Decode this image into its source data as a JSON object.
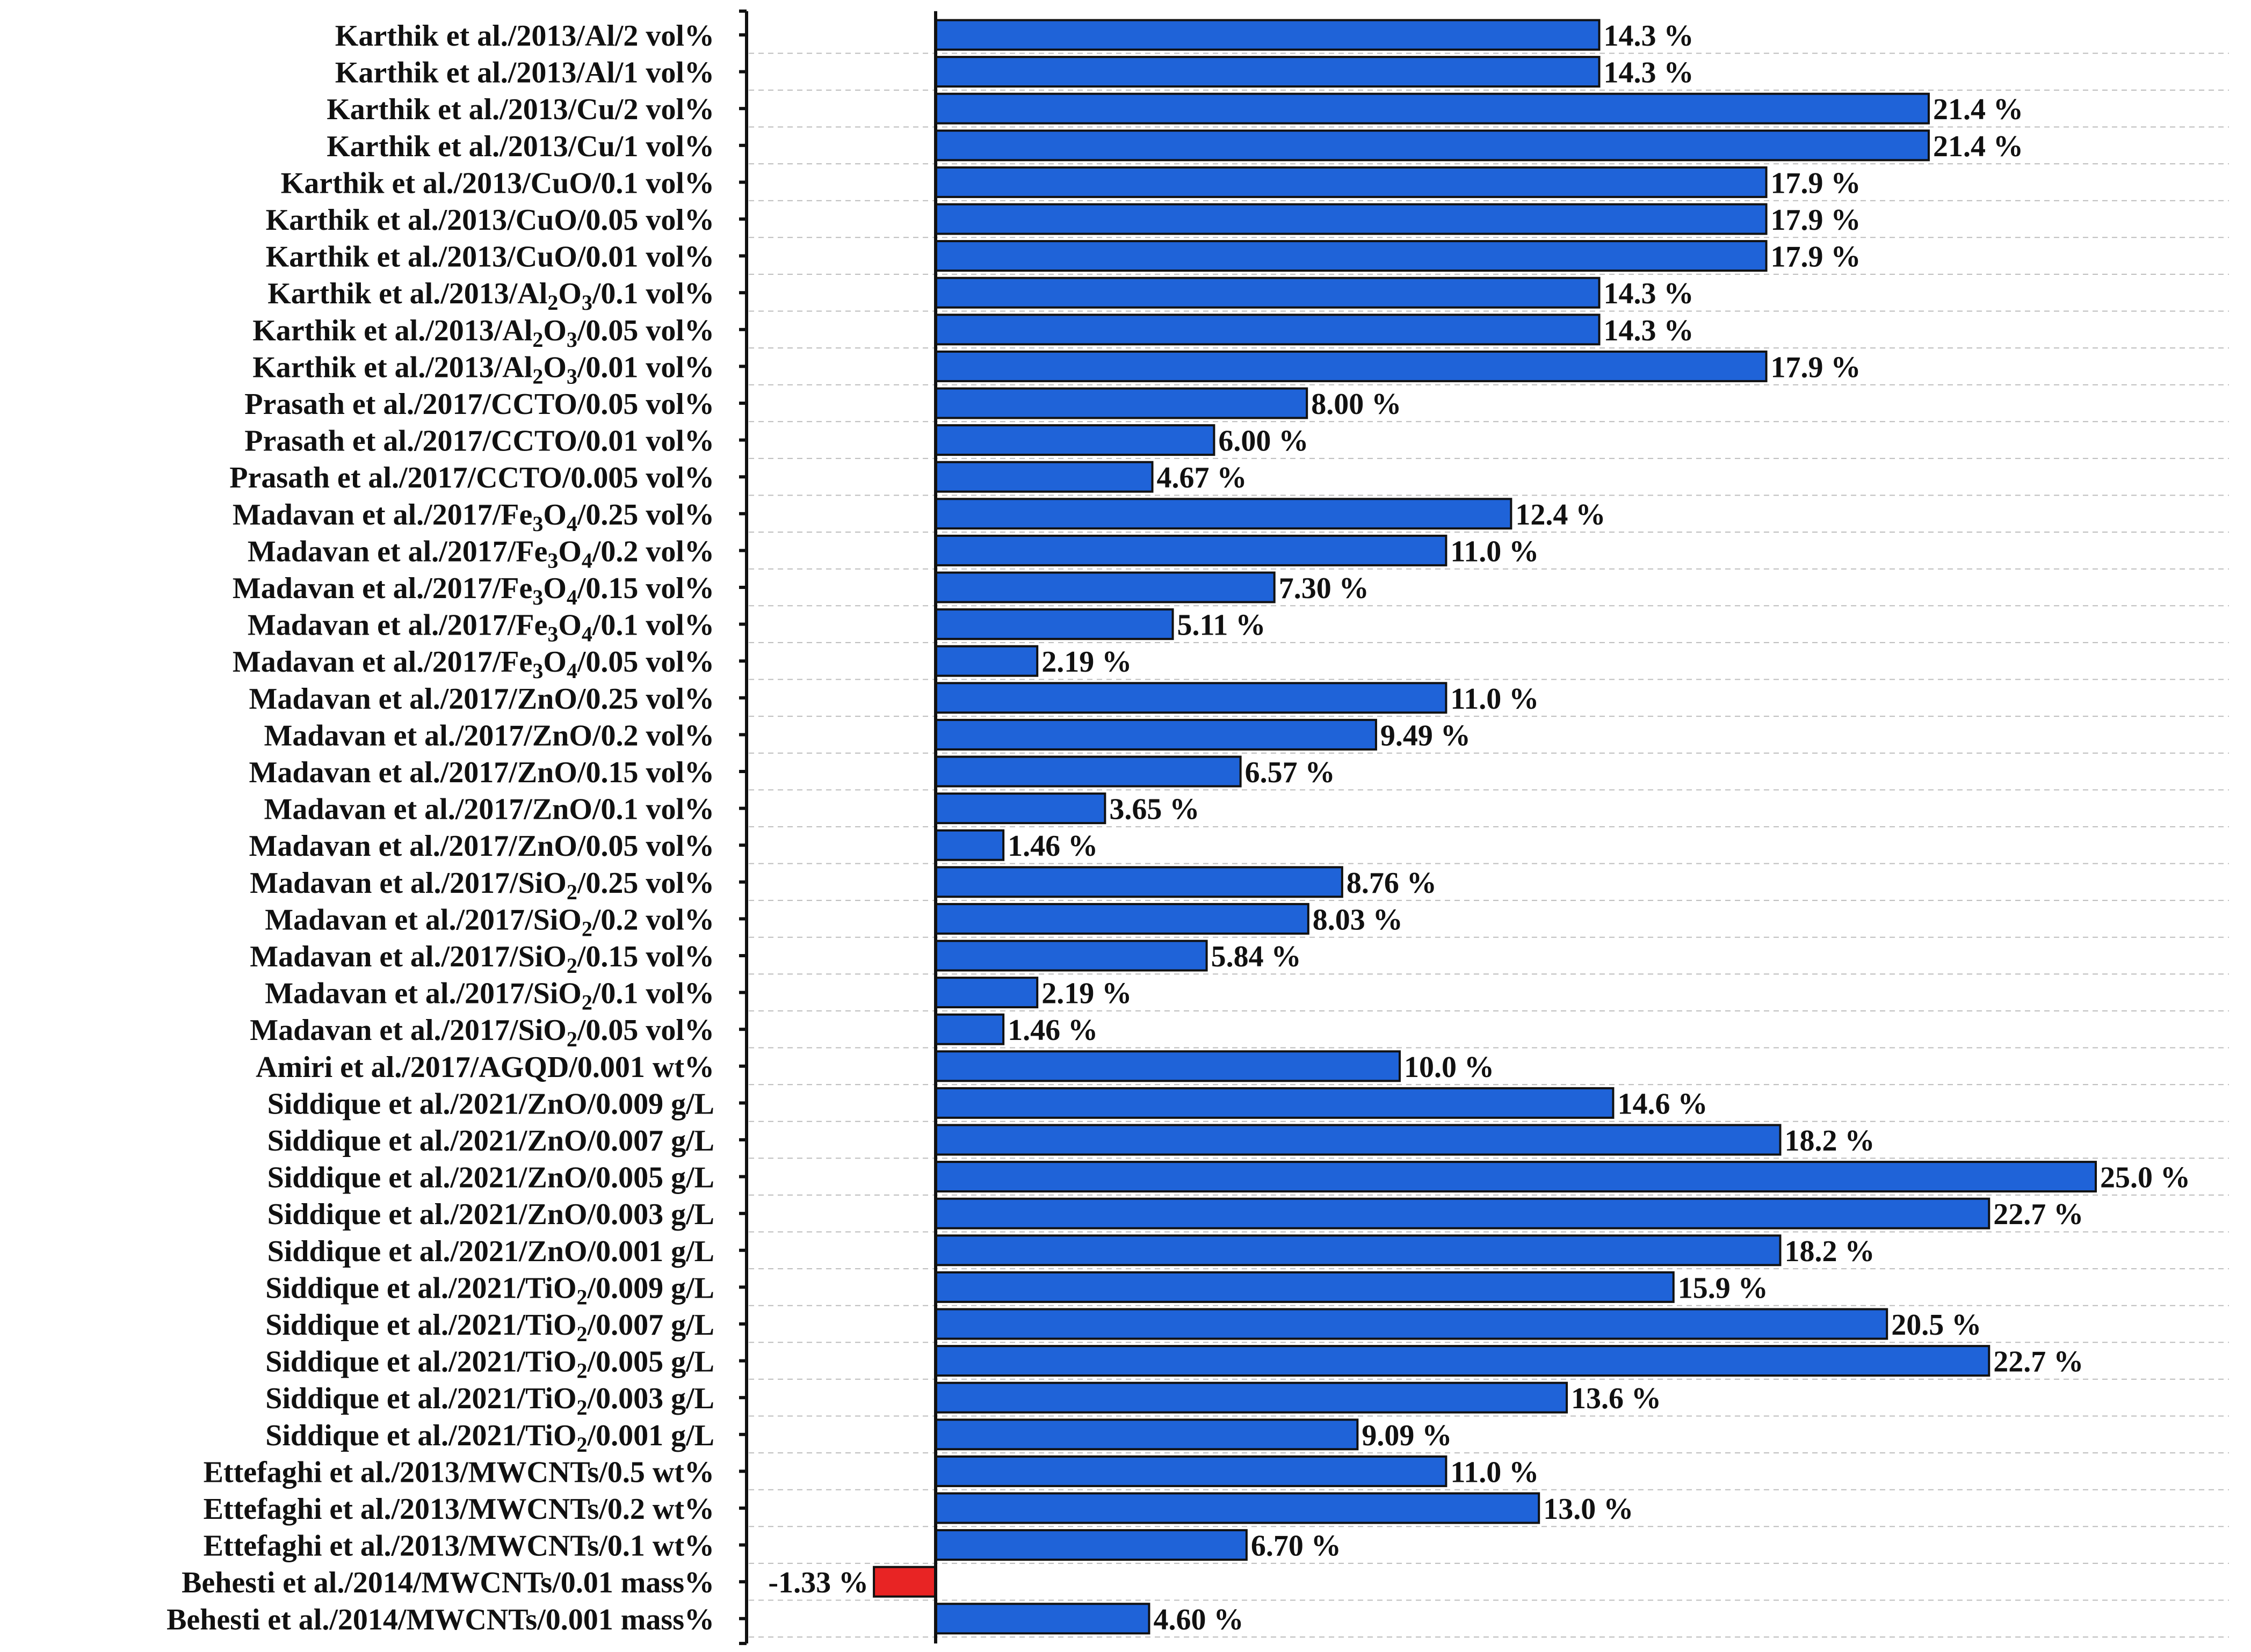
{
  "chart_data": {
    "type": "bar",
    "orientation": "horizontal",
    "title": "",
    "xlabel": "",
    "ylabel": "",
    "grid": "horizontal dashed",
    "legend": "none",
    "colors": {
      "positive": "#1f63d8",
      "negative": "#e82424"
    },
    "xlim": [
      -1.6,
      25.0
    ],
    "categories": [
      {
        "parts": [
          [
            "t",
            "Karthik et al./2013/Al/2 vol%"
          ]
        ]
      },
      {
        "parts": [
          [
            "t",
            "Karthik et al./2013/Al/1 vol%"
          ]
        ]
      },
      {
        "parts": [
          [
            "t",
            "Karthik et al./2013/Cu/2 vol%"
          ]
        ]
      },
      {
        "parts": [
          [
            "t",
            "Karthik et al./2013/Cu/1 vol%"
          ]
        ]
      },
      {
        "parts": [
          [
            "t",
            "Karthik et al./2013/CuO/0.1 vol%"
          ]
        ]
      },
      {
        "parts": [
          [
            "t",
            "Karthik et al./2013/CuO/0.05 vol%"
          ]
        ]
      },
      {
        "parts": [
          [
            "t",
            "Karthik et al./2013/CuO/0.01 vol%"
          ]
        ]
      },
      {
        "parts": [
          [
            "t",
            "Karthik et al./2013/Al"
          ],
          [
            "s",
            "2"
          ],
          [
            "t",
            "O"
          ],
          [
            "s",
            "3"
          ],
          [
            "t",
            "/0.1 vol%"
          ]
        ]
      },
      {
        "parts": [
          [
            "t",
            "Karthik et al./2013/Al"
          ],
          [
            "s",
            "2"
          ],
          [
            "t",
            "O"
          ],
          [
            "s",
            "3"
          ],
          [
            "t",
            "/0.05 vol%"
          ]
        ]
      },
      {
        "parts": [
          [
            "t",
            "Karthik et al./2013/Al"
          ],
          [
            "s",
            "2"
          ],
          [
            "t",
            "O"
          ],
          [
            "s",
            "3"
          ],
          [
            "t",
            "/0.01 vol%"
          ]
        ]
      },
      {
        "parts": [
          [
            "t",
            "Prasath et al./2017/CCTO/0.05 vol%"
          ]
        ]
      },
      {
        "parts": [
          [
            "t",
            "Prasath et al./2017/CCTO/0.01 vol%"
          ]
        ]
      },
      {
        "parts": [
          [
            "t",
            "Prasath et al./2017/CCTO/0.005 vol%"
          ]
        ]
      },
      {
        "parts": [
          [
            "t",
            "Madavan et al./2017/Fe"
          ],
          [
            "s",
            "3"
          ],
          [
            "t",
            "O"
          ],
          [
            "s",
            "4"
          ],
          [
            "t",
            "/0.25 vol%"
          ]
        ]
      },
      {
        "parts": [
          [
            "t",
            "Madavan et al./2017/Fe"
          ],
          [
            "s",
            "3"
          ],
          [
            "t",
            "O"
          ],
          [
            "s",
            "4"
          ],
          [
            "t",
            "/0.2 vol%"
          ]
        ]
      },
      {
        "parts": [
          [
            "t",
            "Madavan et al./2017/Fe"
          ],
          [
            "s",
            "3"
          ],
          [
            "t",
            "O"
          ],
          [
            "s",
            "4"
          ],
          [
            "t",
            "/0.15 vol%"
          ]
        ]
      },
      {
        "parts": [
          [
            "t",
            "Madavan et al./2017/Fe"
          ],
          [
            "s",
            "3"
          ],
          [
            "t",
            "O"
          ],
          [
            "s",
            "4"
          ],
          [
            "t",
            "/0.1 vol%"
          ]
        ]
      },
      {
        "parts": [
          [
            "t",
            "Madavan et al./2017/Fe"
          ],
          [
            "s",
            "3"
          ],
          [
            "t",
            "O"
          ],
          [
            "s",
            "4"
          ],
          [
            "t",
            "/0.05 vol%"
          ]
        ]
      },
      {
        "parts": [
          [
            "t",
            "Madavan et al./2017/ZnO/0.25 vol%"
          ]
        ]
      },
      {
        "parts": [
          [
            "t",
            "Madavan et al./2017/ZnO/0.2 vol%"
          ]
        ]
      },
      {
        "parts": [
          [
            "t",
            "Madavan et al./2017/ZnO/0.15 vol%"
          ]
        ]
      },
      {
        "parts": [
          [
            "t",
            "Madavan et al./2017/ZnO/0.1 vol%"
          ]
        ]
      },
      {
        "parts": [
          [
            "t",
            "Madavan et al./2017/ZnO/0.05 vol%"
          ]
        ]
      },
      {
        "parts": [
          [
            "t",
            "Madavan et al./2017/SiO"
          ],
          [
            "s",
            "2"
          ],
          [
            "t",
            "/0.25 vol%"
          ]
        ]
      },
      {
        "parts": [
          [
            "t",
            "Madavan et al./2017/SiO"
          ],
          [
            "s",
            "2"
          ],
          [
            "t",
            "/0.2 vol%"
          ]
        ]
      },
      {
        "parts": [
          [
            "t",
            "Madavan et al./2017/SiO"
          ],
          [
            "s",
            "2"
          ],
          [
            "t",
            "/0.15 vol%"
          ]
        ]
      },
      {
        "parts": [
          [
            "t",
            "Madavan et al./2017/SiO"
          ],
          [
            "s",
            "2"
          ],
          [
            "t",
            "/0.1 vol%"
          ]
        ]
      },
      {
        "parts": [
          [
            "t",
            "Madavan et al./2017/SiO"
          ],
          [
            "s",
            "2"
          ],
          [
            "t",
            "/0.05 vol%"
          ]
        ]
      },
      {
        "parts": [
          [
            "t",
            "Amiri et al./2017/AGQD/0.001 wt%"
          ]
        ]
      },
      {
        "parts": [
          [
            "t",
            "Siddique et al./2021/ZnO/0.009 g/L"
          ]
        ]
      },
      {
        "parts": [
          [
            "t",
            "Siddique et al./2021/ZnO/0.007 g/L"
          ]
        ]
      },
      {
        "parts": [
          [
            "t",
            "Siddique et al./2021/ZnO/0.005 g/L"
          ]
        ]
      },
      {
        "parts": [
          [
            "t",
            "Siddique et al./2021/ZnO/0.003 g/L"
          ]
        ]
      },
      {
        "parts": [
          [
            "t",
            "Siddique et al./2021/ZnO/0.001 g/L"
          ]
        ]
      },
      {
        "parts": [
          [
            "t",
            "Siddique et al./2021/TiO"
          ],
          [
            "s",
            "2"
          ],
          [
            "t",
            "/0.009 g/L"
          ]
        ]
      },
      {
        "parts": [
          [
            "t",
            "Siddique et al./2021/TiO"
          ],
          [
            "s",
            "2"
          ],
          [
            "t",
            "/0.007 g/L"
          ]
        ]
      },
      {
        "parts": [
          [
            "t",
            "Siddique et al./2021/TiO"
          ],
          [
            "s",
            "2"
          ],
          [
            "t",
            "/0.005 g/L"
          ]
        ]
      },
      {
        "parts": [
          [
            "t",
            "Siddique et al./2021/TiO"
          ],
          [
            "s",
            "2"
          ],
          [
            "t",
            "/0.003 g/L"
          ]
        ]
      },
      {
        "parts": [
          [
            "t",
            "Siddique et al./2021/TiO"
          ],
          [
            "s",
            "2"
          ],
          [
            "t",
            "/0.001 g/L"
          ]
        ]
      },
      {
        "parts": [
          [
            "t",
            "Ettefaghi et al./2013/MWCNTs/0.5 wt%"
          ]
        ]
      },
      {
        "parts": [
          [
            "t",
            "Ettefaghi et al./2013/MWCNTs/0.2 wt%"
          ]
        ]
      },
      {
        "parts": [
          [
            "t",
            "Ettefaghi et al./2013/MWCNTs/0.1 wt%"
          ]
        ]
      },
      {
        "parts": [
          [
            "t",
            "Behesti et al./2014/MWCNTs/0.01 mass%"
          ]
        ]
      },
      {
        "parts": [
          [
            "t",
            "Behesti et al./2014/MWCNTs/0.001 mass%"
          ]
        ]
      }
    ],
    "values": [
      14.3,
      14.3,
      21.4,
      21.4,
      17.9,
      17.9,
      17.9,
      14.3,
      14.3,
      17.9,
      8.0,
      6.0,
      4.67,
      12.4,
      11.0,
      7.3,
      5.11,
      2.19,
      11.0,
      9.49,
      6.57,
      3.65,
      1.46,
      8.76,
      8.03,
      5.84,
      2.19,
      1.46,
      10.0,
      14.6,
      18.2,
      25.0,
      22.7,
      18.2,
      15.9,
      20.5,
      22.7,
      13.6,
      9.09,
      11.0,
      13.0,
      6.7,
      -1.33,
      4.6
    ],
    "value_labels": [
      "14.3 %",
      "14.3 %",
      "21.4 %",
      "21.4 %",
      "17.9 %",
      "17.9 %",
      "17.9 %",
      "14.3 %",
      "14.3 %",
      "17.9 %",
      "8.00 %",
      "6.00 %",
      "4.67 %",
      "12.4 %",
      "11.0 %",
      "7.30 %",
      "5.11 %",
      "2.19 %",
      "11.0 %",
      "9.49 %",
      "6.57 %",
      "3.65 %",
      "1.46 %",
      "8.76 %",
      "8.03 %",
      "5.84 %",
      "2.19 %",
      "1.46 %",
      "10.0 %",
      "14.6 %",
      "18.2 %",
      "25.0 %",
      "22.7 %",
      "18.2 %",
      "15.9 %",
      "20.5 %",
      "22.7 %",
      "13.6 %",
      "9.09 %",
      "11.0 %",
      "13.0 %",
      "6.70 %",
      "-1.33 %",
      "4.60 %"
    ]
  }
}
